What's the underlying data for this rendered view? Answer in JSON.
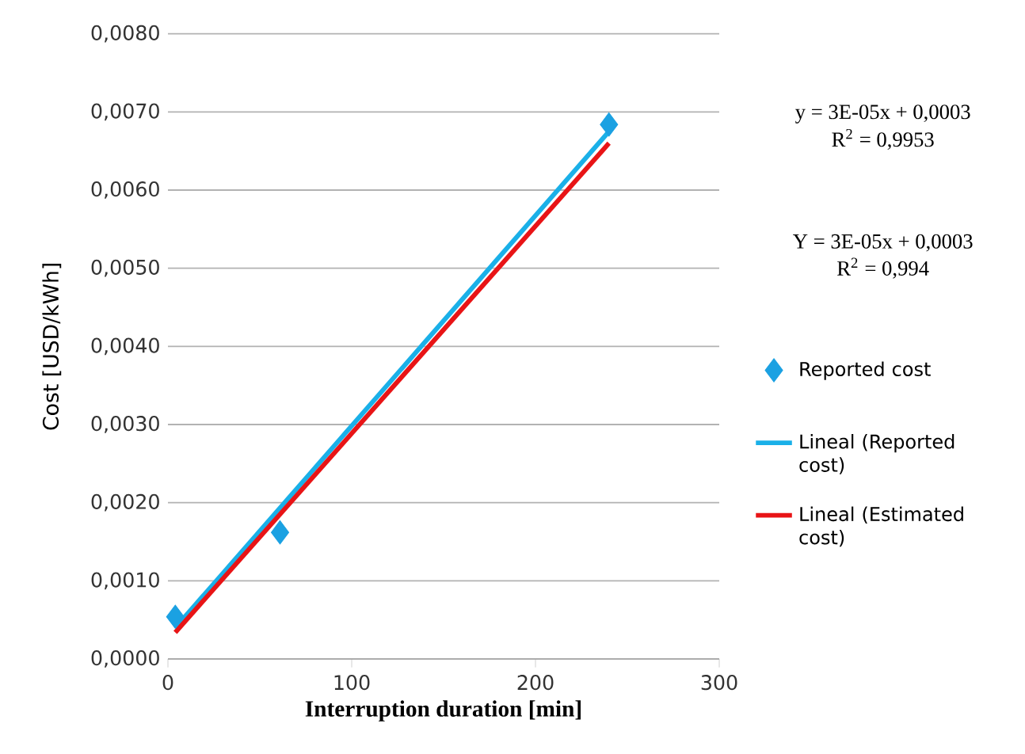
{
  "chart_data": {
    "type": "scatter",
    "xlabel": "Interruption duration [min]",
    "ylabel": "Cost [USD/kWh]",
    "xlim": [
      0,
      300
    ],
    "xticks": [
      0,
      100,
      200,
      300
    ],
    "ylim": [
      0,
      0.008
    ],
    "yticks": [
      {
        "value": 0,
        "label": "0,0000"
      },
      {
        "value": 0.001,
        "label": "0,0010"
      },
      {
        "value": 0.002,
        "label": "0,0020"
      },
      {
        "value": 0.003,
        "label": "0,0030"
      },
      {
        "value": 0.004,
        "label": "0,0040"
      },
      {
        "value": 0.005,
        "label": "0,0050"
      },
      {
        "value": 0.006,
        "label": "0,0060"
      },
      {
        "value": 0.007,
        "label": "0,0070"
      },
      {
        "value": 0.008,
        "label": "0,0080"
      }
    ],
    "grid": "y",
    "legend": "right",
    "series": [
      {
        "name": "Reported cost",
        "type": "scatter",
        "marker": "diamond",
        "color": "#1ba1e2",
        "x": [
          4,
          61,
          240
        ],
        "values": [
          0.00054,
          0.00162,
          0.00684
        ]
      },
      {
        "name": "Lineal (Reported cost)",
        "type": "line",
        "marker": "none",
        "color": "#1ab0e8",
        "x": [
          4,
          240
        ],
        "values": [
          0.0004,
          0.00675
        ]
      },
      {
        "name": "Lineal (Estimated cost)",
        "type": "line",
        "marker": "none",
        "color": "#e81416",
        "x": [
          4,
          240
        ],
        "values": [
          0.00034,
          0.0066
        ]
      }
    ],
    "annotations": [
      "y = 3E-05x + 0,0003",
      "R$^{2}$ = 0,9953",
      "Y = 3E-05x + 0,0003",
      "R$^{2}$ = 0,994"
    ]
  }
}
